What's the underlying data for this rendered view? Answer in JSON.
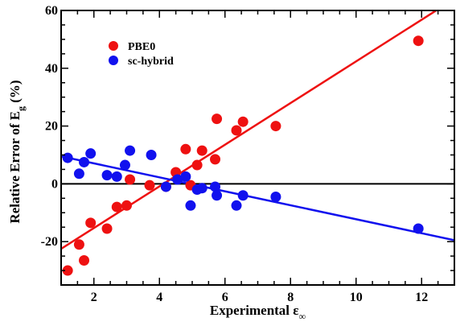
{
  "chart_data": {
    "type": "scatter",
    "xlabel": "Experimental ε",
    "xlabel_subscript": "∞",
    "ylabel": "Relative Error of E",
    "ylabel_subscript": "g",
    "ylabel_suffix": " (%)",
    "xlim": [
      1,
      13
    ],
    "ylim": [
      -35,
      60
    ],
    "xticks": [
      2,
      4,
      6,
      8,
      10,
      12
    ],
    "yticks": [
      -20,
      0,
      20,
      40,
      60
    ],
    "grid": false,
    "legend_position": "top-left",
    "zero_line": true,
    "series": [
      {
        "name": "PBE0",
        "color": "#ee1111",
        "points": [
          [
            1.2,
            -30
          ],
          [
            1.55,
            -21
          ],
          [
            1.7,
            -26.5
          ],
          [
            1.9,
            -13.5
          ],
          [
            2.4,
            -15.5
          ],
          [
            2.7,
            -8
          ],
          [
            3.0,
            -7.5
          ],
          [
            3.1,
            1.5
          ],
          [
            3.7,
            -0.5
          ],
          [
            4.2,
            -1
          ],
          [
            4.5,
            4
          ],
          [
            4.8,
            12
          ],
          [
            4.95,
            -0.5
          ],
          [
            5.15,
            6.5
          ],
          [
            5.3,
            11.5
          ],
          [
            5.7,
            8.5
          ],
          [
            5.75,
            22.5
          ],
          [
            6.35,
            18.5
          ],
          [
            6.55,
            21.5
          ],
          [
            7.55,
            20
          ],
          [
            11.9,
            49.5
          ]
        ],
        "fit": [
          [
            1,
            -22.5
          ],
          [
            13,
            64
          ]
        ]
      },
      {
        "name": "sc-hybrid",
        "color": "#1111ee",
        "points": [
          [
            1.2,
            9
          ],
          [
            1.55,
            3.5
          ],
          [
            1.7,
            7.5
          ],
          [
            1.9,
            10.5
          ],
          [
            2.4,
            3
          ],
          [
            2.7,
            2.5
          ],
          [
            2.95,
            6.5
          ],
          [
            3.1,
            11.5
          ],
          [
            3.75,
            10
          ],
          [
            4.2,
            -1
          ],
          [
            4.55,
            1.5
          ],
          [
            4.8,
            2.5
          ],
          [
            4.95,
            -7.5
          ],
          [
            5.15,
            -2
          ],
          [
            5.3,
            -1.5
          ],
          [
            5.7,
            -1
          ],
          [
            5.75,
            -4
          ],
          [
            6.35,
            -7.5
          ],
          [
            6.55,
            -4
          ],
          [
            7.55,
            -4.5
          ],
          [
            11.9,
            -15.5
          ]
        ],
        "fit": [
          [
            1,
            9.5
          ],
          [
            13,
            -19.5
          ]
        ]
      }
    ]
  }
}
